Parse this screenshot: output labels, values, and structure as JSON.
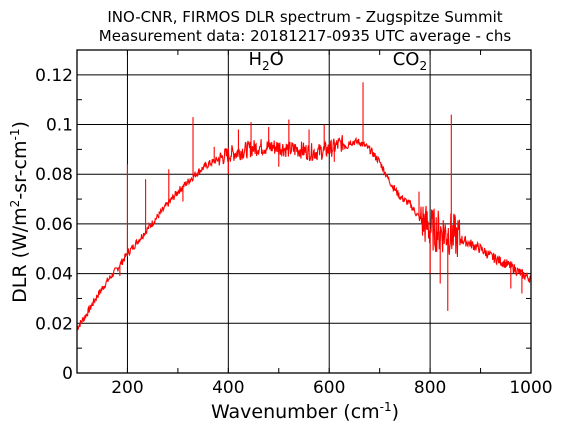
{
  "chart_data": {
    "type": "line",
    "title": "INO-CNR, FIRMOS DLR spectrum - Zugspitze Summit",
    "subtitle": "Measurement data: 20181217-0935 UTC average - chs",
    "xlabel": {
      "text": "Wavenumber (cm",
      "sup": "-1",
      "tail": ")"
    },
    "ylabel": {
      "parts": [
        "DLR (W/m",
        "2",
        "-sr-cm",
        "-1",
        ")"
      ]
    },
    "xlim": [
      100,
      1000
    ],
    "ylim": [
      0,
      0.13
    ],
    "x_ticks": [
      200,
      400,
      600,
      800,
      1000
    ],
    "x_tick_labels": [
      "200",
      "400",
      "600",
      "800",
      "1000"
    ],
    "y_ticks": [
      0,
      0.02,
      0.04,
      0.06,
      0.08,
      0.1,
      0.12
    ],
    "y_tick_labels": [
      "0",
      "0.02",
      "0.04",
      "0.06",
      "0.08",
      "0.1",
      "0.12"
    ],
    "grid": true,
    "series": [
      {
        "color": "#ff0000",
        "x": [
          100,
          120,
          140,
          160,
          180,
          200,
          220,
          240,
          260,
          280,
          300,
          320,
          340,
          360,
          380,
          400,
          420,
          440,
          460,
          480,
          500,
          520,
          540,
          560,
          580,
          600,
          620,
          640,
          660,
          680,
          700,
          720,
          740,
          760,
          780,
          800,
          820,
          840,
          860,
          880,
          900,
          920,
          940,
          960,
          980,
          1000
        ],
        "y": [
          0.018,
          0.024,
          0.031,
          0.037,
          0.042,
          0.048,
          0.053,
          0.058,
          0.063,
          0.068,
          0.073,
          0.077,
          0.081,
          0.084,
          0.086,
          0.088,
          0.089,
          0.09,
          0.091,
          0.091,
          0.091,
          0.09,
          0.09,
          0.089,
          0.089,
          0.09,
          0.092,
          0.093,
          0.093,
          0.09,
          0.085,
          0.077,
          0.071,
          0.068,
          0.062,
          0.058,
          0.057,
          0.056,
          0.054,
          0.052,
          0.05,
          0.047,
          0.045,
          0.043,
          0.04,
          0.038
        ],
        "spikes": [
          {
            "x": 200,
            "y": 0.084
          },
          {
            "x": 236,
            "y": 0.078
          },
          {
            "x": 282,
            "y": 0.082
          },
          {
            "x": 330,
            "y": 0.103
          },
          {
            "x": 372,
            "y": 0.091
          },
          {
            "x": 420,
            "y": 0.098
          },
          {
            "x": 445,
            "y": 0.101
          },
          {
            "x": 480,
            "y": 0.099
          },
          {
            "x": 520,
            "y": 0.102
          },
          {
            "x": 560,
            "y": 0.098
          },
          {
            "x": 590,
            "y": 0.1
          },
          {
            "x": 667,
            "y": 0.117
          },
          {
            "x": 778,
            "y": 0.073
          },
          {
            "x": 842,
            "y": 0.104
          }
        ],
        "dips": [
          {
            "x": 185,
            "y": 0.039
          },
          {
            "x": 310,
            "y": 0.069
          },
          {
            "x": 400,
            "y": 0.08
          },
          {
            "x": 500,
            "y": 0.083
          },
          {
            "x": 610,
            "y": 0.085
          },
          {
            "x": 800,
            "y": 0.04
          },
          {
            "x": 835,
            "y": 0.025
          },
          {
            "x": 820,
            "y": 0.036
          },
          {
            "x": 960,
            "y": 0.034
          },
          {
            "x": 982,
            "y": 0.032
          }
        ]
      }
    ],
    "annotations": [
      {
        "main": "H",
        "sub": "2",
        "tail": "O",
        "x": 475,
        "y": 0.124
      },
      {
        "main": "CO",
        "sub": "2",
        "tail": "",
        "x": 760,
        "y": 0.124
      }
    ]
  }
}
